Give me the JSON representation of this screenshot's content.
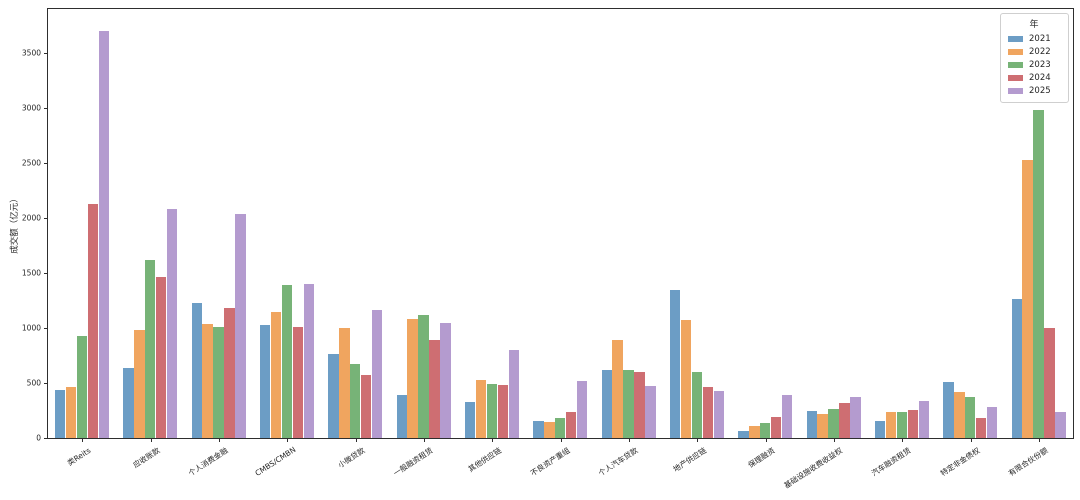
{
  "figure": {
    "background": "#ffffff",
    "spine_color": "#2e2e2e",
    "text_color": "#262626"
  },
  "chart_data": {
    "type": "bar",
    "title": "",
    "xlabel": "",
    "ylabel": "成交额（亿元）",
    "legend_title": "年",
    "legend_position": "upper right",
    "grid": false,
    "ylim": [
      0,
      3900
    ],
    "yticks": [
      0,
      500,
      1000,
      1500,
      2000,
      2500,
      3000,
      3500
    ],
    "categories": [
      "类Reits",
      "应收账款",
      "个人消费金融",
      "CMBS/CMBN",
      "小微贷款",
      "一般融资租赁",
      "其他供应链",
      "不良资产重组",
      "个人汽车贷款",
      "地产供应链",
      "保理融资",
      "基础设施收费收益权",
      "汽车融资租赁",
      "特定非金债权",
      "有限合伙份额"
    ],
    "series": [
      {
        "name": "2021",
        "color": "#6C9DC5",
        "values": [
          440,
          640,
          1230,
          1030,
          760,
          395,
          330,
          155,
          620,
          1350,
          60,
          250,
          155,
          510,
          1260
        ]
      },
      {
        "name": "2022",
        "color": "#F0A55F",
        "values": [
          465,
          980,
          1040,
          1150,
          1000,
          1080,
          530,
          150,
          890,
          1070,
          110,
          220,
          235,
          420,
          2530
        ]
      },
      {
        "name": "2023",
        "color": "#77B377",
        "values": [
          930,
          1620,
          1010,
          1390,
          670,
          1120,
          490,
          185,
          615,
          600,
          140,
          265,
          235,
          370,
          2980
        ]
      },
      {
        "name": "2024",
        "color": "#CE6E72",
        "values": [
          2130,
          1460,
          1180,
          1010,
          570,
          890,
          480,
          235,
          600,
          460,
          195,
          315,
          255,
          180,
          1000
        ]
      },
      {
        "name": "2025",
        "color": "#B49BCF",
        "values": [
          3700,
          2080,
          2040,
          1400,
          1160,
          1050,
          800,
          520,
          470,
          430,
          390,
          375,
          340,
          280,
          240
        ]
      }
    ]
  }
}
